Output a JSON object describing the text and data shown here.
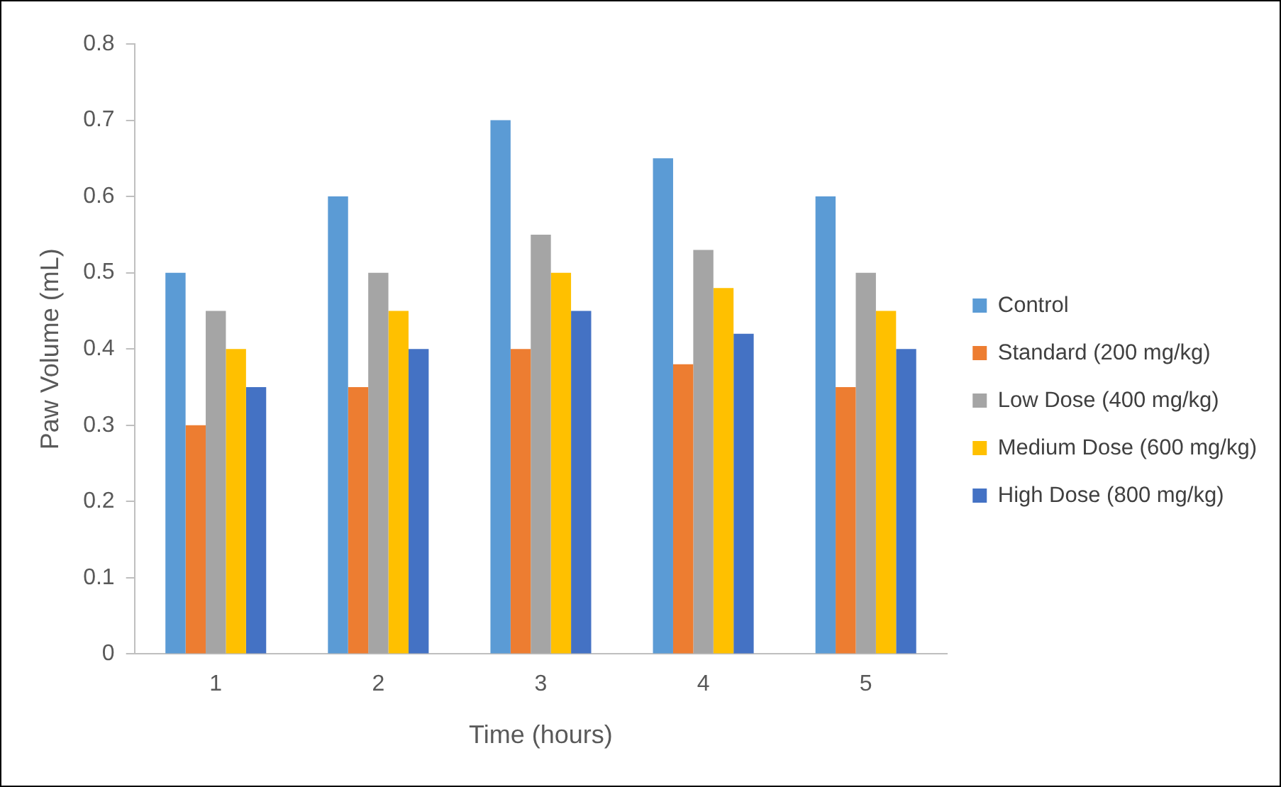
{
  "chart_data": {
    "type": "bar",
    "xlabel": "Time (hours)",
    "ylabel": "Paw Volume (mL)",
    "categories": [
      "1",
      "2",
      "3",
      "4",
      "5"
    ],
    "series": [
      {
        "name": "Control",
        "color": "#5b9bd5",
        "values": [
          0.5,
          0.6,
          0.7,
          0.65,
          0.6
        ]
      },
      {
        "name": "Standard (200 mg/kg)",
        "color": "#ed7d31",
        "values": [
          0.3,
          0.35,
          0.4,
          0.38,
          0.35
        ]
      },
      {
        "name": "Low Dose (400 mg/kg)",
        "color": "#a5a5a5",
        "values": [
          0.45,
          0.5,
          0.55,
          0.53,
          0.5
        ]
      },
      {
        "name": "Medium Dose (600 mg/kg)",
        "color": "#ffc000",
        "values": [
          0.4,
          0.45,
          0.5,
          0.48,
          0.45
        ]
      },
      {
        "name": "High Dose (800 mg/kg)",
        "color": "#4472c4",
        "values": [
          0.35,
          0.4,
          0.45,
          0.42,
          0.4
        ]
      }
    ],
    "ylim": [
      0,
      0.8
    ],
    "yticks": [
      0,
      0.1,
      0.2,
      0.3,
      0.4,
      0.5,
      0.6,
      0.7,
      0.8
    ],
    "grid": false,
    "legend": "right"
  }
}
